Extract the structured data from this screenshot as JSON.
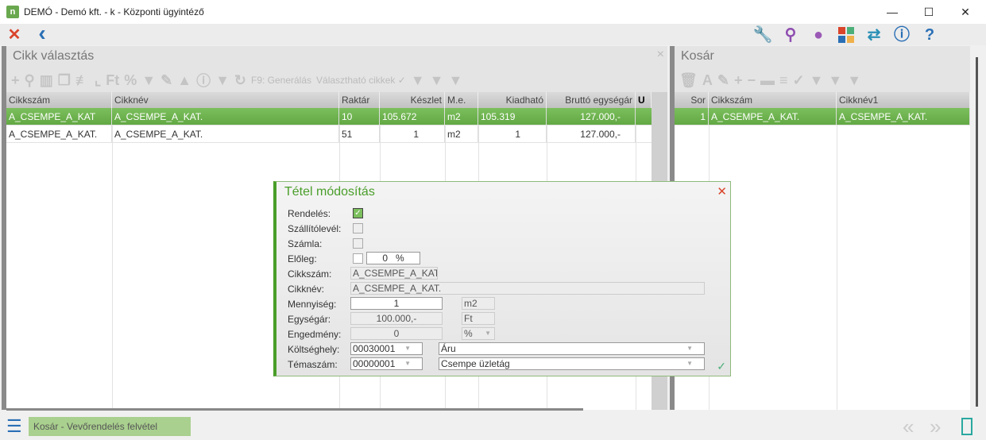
{
  "window": {
    "title": "DEMÓ - Demó kft. - k - Központi ügyintéző",
    "logo": "n",
    "minimize": "—",
    "maximize": "☐",
    "close": "✕"
  },
  "toolbar": {
    "close_icon": "✕",
    "back_icon": "‹",
    "right_icons": [
      "wrench-icon",
      "search-icon",
      "user-icon",
      "apps-icon",
      "swap-icon",
      "info-icon",
      "help-icon"
    ]
  },
  "left_panel": {
    "title": "Cikk választás",
    "close": "×",
    "tools_text": {
      "generate": "F9: Generálás",
      "selectable": "Választható cikkek ✓"
    },
    "columns": [
      "Cikkszám",
      "Cikknév",
      "Raktár",
      "Készlet",
      "M.e.",
      "Kiadható",
      "Bruttó egységár",
      "U"
    ],
    "rows": [
      [
        "A_CSEMPE_A_KAT",
        "A_CSEMPE_A_KAT.",
        "10",
        "105.672",
        "m2",
        "105.319",
        "127.000,-",
        ""
      ],
      [
        "A_CSEMPE_A_KAT.",
        "A_CSEMPE_A_KAT.",
        "51",
        "1",
        "m2",
        "1",
        "127.000,-",
        ""
      ]
    ]
  },
  "right_panel": {
    "title": "Kosár",
    "columns": [
      "Sor",
      "Cikkszám",
      "Cikknév1"
    ],
    "rows": [
      [
        "1",
        "A_CSEMPE_A_KAT.",
        "A_CSEMPE_A_KAT."
      ]
    ]
  },
  "dialog": {
    "title": "Tétel módosítás",
    "close": "✕",
    "ok": "✓",
    "labels": {
      "order": "Rendelés:",
      "delivery": "Szállítólevél:",
      "invoice": "Számla:",
      "advance": "Előleg:",
      "code": "Cikkszám:",
      "name": "Cikknév:",
      "qty": "Mennyiség:",
      "price": "Egységár:",
      "discount": "Engedmény:",
      "cost_center": "Költséghely:",
      "project": "Témaszám:"
    },
    "values": {
      "order_checked": true,
      "delivery_checked": false,
      "invoice_checked": false,
      "advance_checked": false,
      "advance_pct": "0   %",
      "code": "A_CSEMPE_A_KAT",
      "name": "A_CSEMPE_A_KAT.",
      "qty": "1",
      "qty_unit": "m2",
      "price": "100.000,-",
      "price_unit": "Ft",
      "discount": "0",
      "discount_unit": "%",
      "cost_center_code": "00030001",
      "cost_center_name": "Áru",
      "project_code": "00000001",
      "project_name": "Csempe üzletág"
    }
  },
  "bottom": {
    "tab": "Kosár - Vevőrendelés felvétel",
    "prev": "«",
    "next": "»"
  },
  "colors": {
    "accent": "#62a843",
    "dialog_border": "#4a9e2a"
  }
}
